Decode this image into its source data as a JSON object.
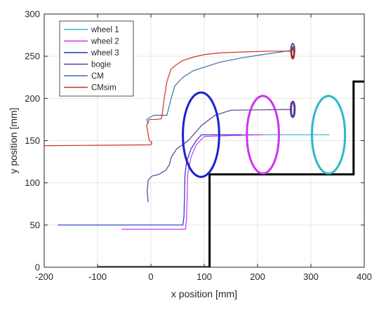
{
  "chart_data": {
    "type": "line",
    "title": "",
    "xlabel": "x position [mm]",
    "ylabel": "y position [mm]",
    "xlim": [
      -200,
      400
    ],
    "ylim": [
      0,
      300
    ],
    "xticks": [
      -200,
      -100,
      0,
      100,
      200,
      300,
      400
    ],
    "yticks": [
      0,
      50,
      100,
      150,
      200,
      250,
      300
    ],
    "grid": true,
    "legend_position": "top-left",
    "legend": [
      {
        "key": "wheel1",
        "label": "wheel 1",
        "color": "#29B8CC"
      },
      {
        "key": "wheel2",
        "label": "wheel 2",
        "color": "#CC33EE"
      },
      {
        "key": "wheel3",
        "label": "wheel 3",
        "color": "#2233CC"
      },
      {
        "key": "bogie",
        "label": "bogie",
        "color": "#5A3A9A"
      },
      {
        "key": "cm",
        "label": "CM",
        "color": "#3B6FB0"
      },
      {
        "key": "cmsim",
        "label": "CMsim",
        "color": "#CC3322"
      }
    ],
    "obstacle": {
      "color": "#000000",
      "points": [
        [
          -100,
          0
        ],
        [
          110,
          0
        ],
        [
          110,
          110
        ],
        [
          380,
          110
        ],
        [
          380,
          220
        ],
        [
          400,
          220
        ]
      ]
    },
    "series": [
      {
        "key": "wheel1",
        "color": "#29B8CC",
        "width": 1.2,
        "points": [
          [
            95,
            157
          ],
          [
            335,
            157
          ]
        ]
      },
      {
        "key": "wheel3",
        "color": "#2233CC",
        "width": 1.2,
        "points": [
          [
            -175,
            50
          ],
          [
            60,
            50
          ],
          [
            62,
            60
          ],
          [
            64,
            110
          ],
          [
            67,
            125
          ],
          [
            75,
            140
          ],
          [
            85,
            150
          ],
          [
            95,
            157
          ],
          [
            170,
            157
          ]
        ]
      },
      {
        "key": "wheel2",
        "color": "#CC33EE",
        "width": 1.2,
        "points": [
          [
            -55,
            45
          ],
          [
            65,
            45
          ],
          [
            67,
            60
          ],
          [
            69,
            110
          ],
          [
            75,
            130
          ],
          [
            85,
            145
          ],
          [
            100,
            155
          ],
          [
            210,
            157
          ]
        ]
      },
      {
        "key": "bogie",
        "color": "#5A3A9A",
        "width": 1.2,
        "points": [
          [
            -5,
            77
          ],
          [
            -7,
            90
          ],
          [
            -5,
            103
          ],
          [
            2,
            108
          ],
          [
            15,
            110
          ],
          [
            28,
            115
          ],
          [
            35,
            122
          ],
          [
            38,
            130
          ],
          [
            48,
            140
          ],
          [
            70,
            150
          ],
          [
            95,
            168
          ],
          [
            120,
            180
          ],
          [
            150,
            186
          ],
          [
            265,
            187
          ]
        ]
      },
      {
        "key": "cm",
        "color": "#3B6FB0",
        "width": 1.2,
        "points": [
          [
            -5,
            170
          ],
          [
            -8,
            175
          ],
          [
            5,
            180
          ],
          [
            30,
            180
          ],
          [
            38,
            200
          ],
          [
            45,
            215
          ],
          [
            60,
            225
          ],
          [
            80,
            233
          ],
          [
            100,
            237
          ],
          [
            130,
            243
          ],
          [
            170,
            248
          ],
          [
            210,
            252
          ],
          [
            265,
            257
          ]
        ]
      },
      {
        "key": "cmsim",
        "color": "#CC3322",
        "width": 1.2,
        "points": [
          [
            -200,
            144
          ],
          [
            0,
            145
          ],
          [
            2,
            148
          ],
          [
            -3,
            150
          ],
          [
            -8,
            168
          ],
          [
            -3,
            175
          ],
          [
            10,
            175
          ],
          [
            20,
            176
          ],
          [
            22,
            185
          ],
          [
            25,
            200
          ],
          [
            30,
            220
          ],
          [
            38,
            235
          ],
          [
            48,
            240
          ],
          [
            60,
            245
          ],
          [
            80,
            249
          ],
          [
            100,
            252
          ],
          [
            130,
            254
          ],
          [
            170,
            255
          ],
          [
            220,
            256
          ],
          [
            265,
            256
          ]
        ]
      }
    ],
    "ellipses": [
      {
        "key": "wheel3-circle",
        "color": "#1A22CC",
        "cx": 94,
        "cy": 157,
        "rx": 34,
        "ry": 50,
        "width": 3
      },
      {
        "key": "wheel2-circle",
        "color": "#CC33EE",
        "cx": 210,
        "cy": 157,
        "rx": 30,
        "ry": 46,
        "width": 3
      },
      {
        "key": "wheel1-circle",
        "color": "#29B8CC",
        "cx": 333,
        "cy": 157,
        "rx": 31,
        "ry": 46,
        "width": 3
      },
      {
        "key": "bogie-circle",
        "color": "#5A3A9A",
        "cx": 266,
        "cy": 187,
        "rx": 3.5,
        "ry": 9,
        "width": 3
      },
      {
        "key": "cm-circle-outer",
        "color": "#2A55C0",
        "cx": 266,
        "cy": 257,
        "rx": 3.5,
        "ry": 8,
        "width": 2
      },
      {
        "key": "cmsim-circle",
        "color": "#CC3322",
        "cx": 266,
        "cy": 254,
        "rx": 3,
        "ry": 7,
        "width": 2
      },
      {
        "key": "cm-circle-inner",
        "color": "#7A2A2A",
        "cx": 266,
        "cy": 254,
        "rx": 2,
        "ry": 5,
        "width": 1.5
      }
    ]
  }
}
